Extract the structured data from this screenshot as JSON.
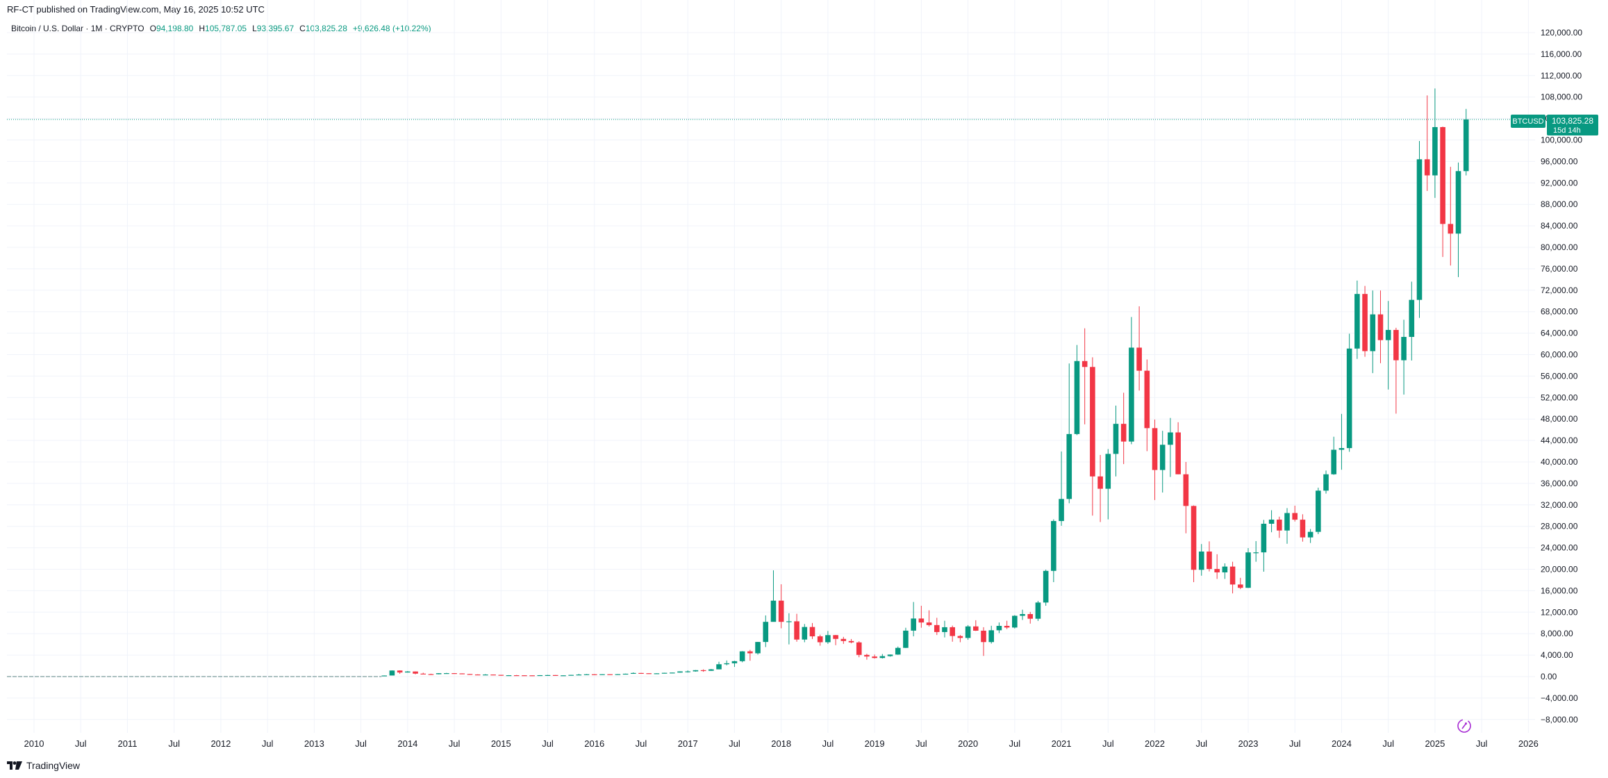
{
  "header": {
    "published": "RF-CT published on TradingView.com, May 16, 2025 10:52 UTC"
  },
  "legend": {
    "symbol": "Bitcoin / U.S. Dollar · 1M · CRYPTO",
    "o_label": "O",
    "o_value": "94,198.80",
    "h_label": "H",
    "h_value": "105,787.05",
    "l_label": "L",
    "l_value": "93,395.67",
    "c_label": "C",
    "c_value": "103,825.28",
    "change": "+9,626.48 (+10.22%)"
  },
  "price_tag": {
    "symbol": "BTCUSD",
    "price": "103,825.28",
    "countdown": "15d 14h"
  },
  "footer": {
    "brand": "TradingView"
  },
  "colors": {
    "up": "#089981",
    "down": "#f23645",
    "grid": "#f0f3fa",
    "text": "#131722",
    "tag": "#089981"
  },
  "chart_data": {
    "type": "candlestick",
    "title": "Bitcoin / U.S. Dollar · 1M · CRYPTO",
    "interval": "1M",
    "ylim": [
      -10000,
      122000
    ],
    "y_ticks": [
      "120,000.00",
      "116,000.00",
      "112,000.00",
      "108,000.00",
      "104,000.00",
      "100,000.00",
      "96,000.00",
      "92,000.00",
      "88,000.00",
      "84,000.00",
      "80,000.00",
      "76,000.00",
      "72,000.00",
      "68,000.00",
      "64,000.00",
      "60,000.00",
      "56,000.00",
      "52,000.00",
      "48,000.00",
      "44,000.00",
      "40,000.00",
      "36,000.00",
      "32,000.00",
      "28,000.00",
      "24,000.00",
      "20,000.00",
      "16,000.00",
      "12,000.00",
      "8,000.00",
      "4,000.00",
      "0.00",
      "−4,000.00",
      "−8,000.00"
    ],
    "y_tick_values": [
      120000,
      116000,
      112000,
      108000,
      104000,
      100000,
      96000,
      92000,
      88000,
      84000,
      80000,
      76000,
      72000,
      68000,
      64000,
      60000,
      56000,
      52000,
      48000,
      44000,
      40000,
      36000,
      32000,
      28000,
      24000,
      20000,
      16000,
      12000,
      8000,
      4000,
      0,
      -4000,
      -8000
    ],
    "x_ticks": [
      {
        "label": "2010",
        "date": "2010-01"
      },
      {
        "label": "Jul",
        "date": "2010-07"
      },
      {
        "label": "2011",
        "date": "2011-01"
      },
      {
        "label": "Jul",
        "date": "2011-07"
      },
      {
        "label": "2012",
        "date": "2012-01"
      },
      {
        "label": "Jul",
        "date": "2012-07"
      },
      {
        "label": "2013",
        "date": "2013-01"
      },
      {
        "label": "Jul",
        "date": "2013-07"
      },
      {
        "label": "2014",
        "date": "2014-01"
      },
      {
        "label": "Jul",
        "date": "2014-07"
      },
      {
        "label": "2015",
        "date": "2015-01"
      },
      {
        "label": "Jul",
        "date": "2015-07"
      },
      {
        "label": "2016",
        "date": "2016-01"
      },
      {
        "label": "Jul",
        "date": "2016-07"
      },
      {
        "label": "2017",
        "date": "2017-01"
      },
      {
        "label": "Jul",
        "date": "2017-07"
      },
      {
        "label": "2018",
        "date": "2018-01"
      },
      {
        "label": "Jul",
        "date": "2018-07"
      },
      {
        "label": "2019",
        "date": "2019-01"
      },
      {
        "label": "Jul",
        "date": "2019-07"
      },
      {
        "label": "2020",
        "date": "2020-01"
      },
      {
        "label": "Jul",
        "date": "2020-07"
      },
      {
        "label": "2021",
        "date": "2021-01"
      },
      {
        "label": "Jul",
        "date": "2021-07"
      },
      {
        "label": "2022",
        "date": "2022-01"
      },
      {
        "label": "Jul",
        "date": "2022-07"
      },
      {
        "label": "2023",
        "date": "2023-01"
      },
      {
        "label": "Jul",
        "date": "2023-07"
      },
      {
        "label": "2024",
        "date": "2024-01"
      },
      {
        "label": "Jul",
        "date": "2024-07"
      },
      {
        "label": "2025",
        "date": "2025-01"
      },
      {
        "label": "Jul",
        "date": "2025-07"
      },
      {
        "label": "2026",
        "date": "2026-01"
      }
    ],
    "last_price": 103825.28,
    "ohlc_columns": [
      "date",
      "open",
      "high",
      "low",
      "close"
    ],
    "candles": [
      [
        "2013-10",
        130,
        210,
        105,
        200
      ],
      [
        "2013-11",
        200,
        1160,
        200,
        1130
      ],
      [
        "2013-12",
        1130,
        1160,
        510,
        760
      ],
      [
        "2014-01",
        760,
        1020,
        750,
        950
      ],
      [
        "2014-02",
        950,
        960,
        420,
        550
      ],
      [
        "2014-03",
        550,
        720,
        450,
        460
      ],
      [
        "2014-04",
        460,
        540,
        340,
        440
      ],
      [
        "2014-05",
        440,
        640,
        420,
        630
      ],
      [
        "2014-06",
        630,
        690,
        550,
        640
      ],
      [
        "2014-07",
        640,
        650,
        570,
        590
      ],
      [
        "2014-08",
        590,
        600,
        450,
        480
      ],
      [
        "2014-09",
        480,
        500,
        370,
        390
      ],
      [
        "2014-10",
        390,
        420,
        280,
        340
      ],
      [
        "2014-11",
        340,
        460,
        310,
        380
      ],
      [
        "2014-12",
        380,
        390,
        300,
        320
      ],
      [
        "2015-01",
        320,
        320,
        150,
        220
      ],
      [
        "2015-02",
        220,
        270,
        210,
        255
      ],
      [
        "2015-03",
        255,
        300,
        240,
        245
      ],
      [
        "2015-04",
        245,
        260,
        215,
        235
      ],
      [
        "2015-05",
        235,
        250,
        225,
        230
      ],
      [
        "2015-06",
        230,
        270,
        220,
        265
      ],
      [
        "2015-07",
        265,
        315,
        260,
        285
      ],
      [
        "2015-08",
        285,
        290,
        200,
        230
      ],
      [
        "2015-09",
        230,
        250,
        225,
        236
      ],
      [
        "2015-10",
        236,
        330,
        235,
        315
      ],
      [
        "2015-11",
        315,
        500,
        310,
        377
      ],
      [
        "2015-12",
        377,
        470,
        350,
        430
      ],
      [
        "2016-01",
        430,
        460,
        350,
        370
      ],
      [
        "2016-02",
        370,
        440,
        360,
        438
      ],
      [
        "2016-03",
        438,
        440,
        400,
        416
      ],
      [
        "2016-04",
        416,
        470,
        410,
        448
      ],
      [
        "2016-05",
        448,
        550,
        430,
        530
      ],
      [
        "2016-06",
        530,
        780,
        520,
        670
      ],
      [
        "2016-07",
        670,
        690,
        600,
        625
      ],
      [
        "2016-08",
        625,
        630,
        480,
        575
      ],
      [
        "2016-09",
        575,
        620,
        590,
        608
      ],
      [
        "2016-10",
        608,
        720,
        605,
        700
      ],
      [
        "2016-11",
        700,
        750,
        690,
        745
      ],
      [
        "2016-12",
        745,
        980,
        740,
        965
      ],
      [
        "2017-01",
        965,
        1150,
        750,
        970
      ],
      [
        "2017-02",
        970,
        1210,
        920,
        1190
      ],
      [
        "2017-03",
        1190,
        1350,
        890,
        1080
      ],
      [
        "2017-04",
        1080,
        1420,
        1060,
        1350
      ],
      [
        "2017-05",
        1350,
        2760,
        1350,
        2300
      ],
      [
        "2017-06",
        2300,
        3000,
        2100,
        2480
      ],
      [
        "2017-07",
        2480,
        2950,
        1800,
        2870
      ],
      [
        "2017-08",
        2870,
        4750,
        2670,
        4700
      ],
      [
        "2017-09",
        4700,
        4980,
        2950,
        4340
      ],
      [
        "2017-10",
        4340,
        6470,
        4100,
        6450
      ],
      [
        "2017-11",
        6450,
        11400,
        5500,
        10200
      ],
      [
        "2017-12",
        10200,
        19800,
        10700,
        14150
      ],
      [
        "2018-01",
        14150,
        17200,
        9000,
        10200
      ],
      [
        "2018-02",
        10200,
        11800,
        6000,
        10300
      ],
      [
        "2018-03",
        10300,
        11700,
        6500,
        6900
      ],
      [
        "2018-04",
        6900,
        9800,
        6400,
        9240
      ],
      [
        "2018-05",
        9240,
        9990,
        7000,
        7500
      ],
      [
        "2018-06",
        7500,
        7800,
        5750,
        6400
      ],
      [
        "2018-07",
        6400,
        8500,
        6100,
        7730
      ],
      [
        "2018-08",
        7730,
        7760,
        5850,
        7020
      ],
      [
        "2018-09",
        7020,
        7400,
        6100,
        6630
      ],
      [
        "2018-10",
        6630,
        7000,
        6200,
        6370
      ],
      [
        "2018-11",
        6370,
        6590,
        3600,
        4040
      ],
      [
        "2018-12",
        4040,
        4250,
        3150,
        3740
      ],
      [
        "2019-01",
        3740,
        4100,
        3350,
        3460
      ],
      [
        "2019-02",
        3460,
        4200,
        3370,
        3810
      ],
      [
        "2019-03",
        3810,
        4120,
        3710,
        4100
      ],
      [
        "2019-04",
        4100,
        5600,
        4050,
        5350
      ],
      [
        "2019-05",
        5350,
        9100,
        5330,
        8560
      ],
      [
        "2019-06",
        8560,
        13900,
        7500,
        10820
      ],
      [
        "2019-07",
        10820,
        13200,
        9100,
        10080
      ],
      [
        "2019-08",
        10080,
        12350,
        9330,
        9600
      ],
      [
        "2019-09",
        9600,
        10950,
        7750,
        8300
      ],
      [
        "2019-10",
        8300,
        10400,
        7300,
        9200
      ],
      [
        "2019-11",
        9200,
        9500,
        6500,
        7560
      ],
      [
        "2019-12",
        7560,
        7750,
        6400,
        7200
      ],
      [
        "2020-01",
        7200,
        9600,
        6850,
        9350
      ],
      [
        "2020-02",
        9350,
        10500,
        8500,
        8550
      ],
      [
        "2020-03",
        8550,
        9200,
        3850,
        6430
      ],
      [
        "2020-04",
        6430,
        9470,
        6150,
        8630
      ],
      [
        "2020-05",
        8630,
        10080,
        8100,
        9450
      ],
      [
        "2020-06",
        9450,
        10400,
        8850,
        9140
      ],
      [
        "2020-07",
        9140,
        11450,
        8970,
        11330
      ],
      [
        "2020-08",
        11330,
        12470,
        10550,
        11650
      ],
      [
        "2020-09",
        11650,
        12050,
        9870,
        10780
      ],
      [
        "2020-10",
        10780,
        14100,
        10370,
        13800
      ],
      [
        "2020-11",
        13800,
        19930,
        13200,
        19700
      ],
      [
        "2020-12",
        19700,
        29300,
        17600,
        28990
      ],
      [
        "2021-01",
        28990,
        41950,
        28100,
        33100
      ],
      [
        "2021-02",
        33100,
        58350,
        32300,
        45200
      ],
      [
        "2021-03",
        45200,
        61800,
        45000,
        58800
      ],
      [
        "2021-04",
        58800,
        64900,
        47000,
        57700
      ],
      [
        "2021-05",
        57700,
        59500,
        30000,
        37300
      ],
      [
        "2021-06",
        37300,
        41300,
        28800,
        35000
      ],
      [
        "2021-07",
        35000,
        42400,
        29300,
        41500
      ],
      [
        "2021-08",
        41500,
        50500,
        37300,
        47100
      ],
      [
        "2021-09",
        47100,
        52900,
        39600,
        43800
      ],
      [
        "2021-10",
        43800,
        67000,
        43300,
        61300
      ],
      [
        "2021-11",
        61300,
        69000,
        53300,
        57000
      ],
      [
        "2021-12",
        57000,
        59100,
        42000,
        46300
      ],
      [
        "2022-01",
        46300,
        47900,
        32900,
        38500
      ],
      [
        "2022-02",
        38500,
        45800,
        34300,
        43200
      ],
      [
        "2022-03",
        43200,
        48200,
        37200,
        45500
      ],
      [
        "2022-04",
        45500,
        47400,
        37700,
        37700
      ],
      [
        "2022-05",
        37700,
        40000,
        26700,
        31800
      ],
      [
        "2022-06",
        31800,
        31900,
        17600,
        19900
      ],
      [
        "2022-07",
        19900,
        24700,
        18800,
        23300
      ],
      [
        "2022-08",
        23300,
        25200,
        19600,
        20050
      ],
      [
        "2022-09",
        20050,
        22800,
        18200,
        19420
      ],
      [
        "2022-10",
        19420,
        21100,
        18200,
        20500
      ],
      [
        "2022-11",
        20500,
        21400,
        15500,
        17160
      ],
      [
        "2022-12",
        17160,
        18400,
        16300,
        16540
      ],
      [
        "2023-01",
        16540,
        23950,
        16500,
        23140
      ],
      [
        "2023-02",
        23140,
        25250,
        21400,
        23150
      ],
      [
        "2023-03",
        23150,
        29200,
        19550,
        28480
      ],
      [
        "2023-04",
        28480,
        31000,
        26900,
        29250
      ],
      [
        "2023-05",
        29250,
        29800,
        25850,
        27220
      ],
      [
        "2023-06",
        27220,
        31400,
        24750,
        30480
      ],
      [
        "2023-07",
        30480,
        31850,
        28900,
        29240
      ],
      [
        "2023-08",
        29240,
        30250,
        25150,
        25940
      ],
      [
        "2023-09",
        25940,
        27500,
        24900,
        26970
      ],
      [
        "2023-10",
        26970,
        35200,
        26550,
        34650
      ],
      [
        "2023-11",
        34650,
        38400,
        34100,
        37700
      ],
      [
        "2023-12",
        37700,
        44700,
        37600,
        42270
      ],
      [
        "2024-01",
        42270,
        48950,
        38550,
        42580
      ],
      [
        "2024-02",
        42580,
        63900,
        41900,
        61130
      ],
      [
        "2024-03",
        61130,
        73800,
        59200,
        71300
      ],
      [
        "2024-04",
        71300,
        72800,
        59600,
        60650
      ],
      [
        "2024-05",
        60650,
        71950,
        56550,
        67500
      ],
      [
        "2024-06",
        67500,
        71950,
        58400,
        62700
      ],
      [
        "2024-07",
        62700,
        70000,
        53500,
        64600
      ],
      [
        "2024-08",
        64600,
        65000,
        49000,
        58950
      ],
      [
        "2024-09",
        58950,
        66500,
        52550,
        63300
      ],
      [
        "2024-10",
        63300,
        73600,
        58900,
        70200
      ],
      [
        "2024-11",
        70200,
        99800,
        66850,
        96400
      ],
      [
        "2024-12",
        96400,
        108300,
        90500,
        93400
      ],
      [
        "2025-01",
        93400,
        109600,
        89200,
        102400
      ],
      [
        "2025-02",
        102400,
        102500,
        78200,
        84350
      ],
      [
        "2025-03",
        84350,
        95000,
        76600,
        82550
      ],
      [
        "2025-04",
        82550,
        95800,
        74450,
        94200
      ],
      [
        "2025-05",
        94198.8,
        105787.05,
        93395.67,
        103825.28
      ]
    ]
  }
}
